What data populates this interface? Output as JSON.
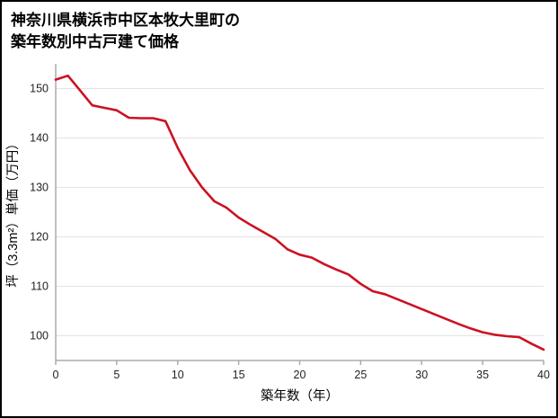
{
  "header": {
    "title_line1": "神奈川県横浜市中区本牧大里町の",
    "title_line2": "築年数別中古戸建て価格"
  },
  "chart_data": {
    "type": "line",
    "title": "神奈川県横浜市中区本牧大里町の築年数別中古戸建て価格",
    "xlabel": "築年数（年）",
    "ylabel": "坪（3.3m²）単価（万円）",
    "x": [
      0,
      1,
      2,
      3,
      4,
      5,
      6,
      7,
      8,
      9,
      10,
      11,
      12,
      13,
      14,
      15,
      16,
      17,
      18,
      19,
      20,
      21,
      22,
      23,
      24,
      25,
      26,
      27,
      28,
      29,
      30,
      31,
      32,
      33,
      34,
      35,
      36,
      37,
      38,
      39,
      40
    ],
    "values": [
      151.8,
      152.6,
      149.6,
      146.6,
      146.1,
      145.6,
      144.1,
      144.0,
      144.0,
      143.4,
      138.0,
      133.5,
      130.0,
      127.2,
      125.9,
      123.9,
      122.4,
      121.0,
      119.6,
      117.5,
      116.4,
      115.8,
      114.5,
      113.4,
      112.4,
      110.5,
      109.0,
      108.4,
      107.4,
      106.4,
      105.4,
      104.4,
      103.4,
      102.4,
      101.5,
      100.7,
      100.2,
      99.9,
      99.7,
      98.4,
      97.2
    ],
    "xlim": [
      0,
      40
    ],
    "ylim": [
      95,
      155
    ],
    "xticks": [
      0,
      5,
      10,
      15,
      20,
      25,
      30,
      35,
      40
    ],
    "yticks": [
      100,
      110,
      120,
      130,
      140,
      150
    ],
    "grid": true,
    "legend": "none",
    "line_color": "#cc1122",
    "grid_color": "#e3e3e3",
    "axis_color": "#ababab",
    "tick_label_color": "#222222"
  }
}
